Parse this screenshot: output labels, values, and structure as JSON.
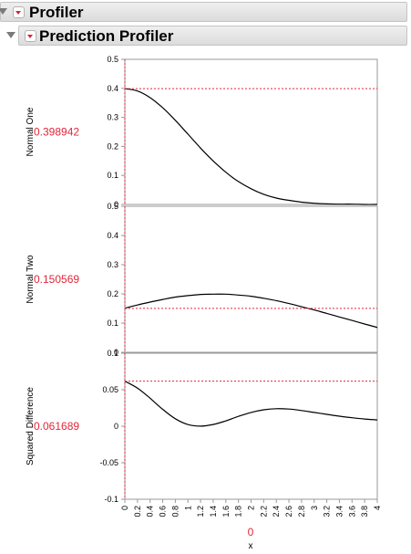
{
  "headers": {
    "profiler": {
      "title": "Profiler"
    },
    "prediction_profiler": {
      "title": "Prediction Profiler"
    }
  },
  "colors": {
    "accent": "#e3263a",
    "curve": "#000000",
    "frame": "#9a9a9a"
  },
  "x_axis": {
    "label": "x",
    "current_value": "0",
    "range": [
      0,
      4
    ],
    "ticks": [
      "0",
      "0.2",
      "0.4",
      "0.6",
      "0.8",
      "1",
      "1.2",
      "1.4",
      "1.6",
      "1.8",
      "2",
      "2.2",
      "2.4",
      "2.6",
      "2.8",
      "3",
      "3.2",
      "3.4",
      "3.6",
      "3.8",
      "4"
    ]
  },
  "chart_data": [
    {
      "type": "line",
      "ylabel": "Normal One",
      "current_value": "0.398942",
      "ylim": [
        0,
        0.5
      ],
      "yticks": [
        "0",
        "0.1",
        "0.2",
        "0.3",
        "0.4",
        "0.5"
      ],
      "series": [
        {
          "x": [
            0,
            0.2,
            0.4,
            0.6,
            0.8,
            1,
            1.2,
            1.4,
            1.6,
            1.8,
            2,
            2.2,
            2.4,
            2.6,
            2.8,
            3,
            3.2,
            3.4,
            3.6,
            3.8,
            4
          ],
          "values": [
            0.399,
            0.391,
            0.368,
            0.333,
            0.29,
            0.242,
            0.194,
            0.15,
            0.111,
            0.079,
            0.054,
            0.035,
            0.022,
            0.014,
            0.008,
            0.004,
            0.002,
            0.001,
            0.001,
            0.0,
            0.0
          ]
        }
      ]
    },
    {
      "type": "line",
      "ylabel": "Normal Two",
      "current_value": "0.150569",
      "ylim": [
        0,
        0.5
      ],
      "yticks": [
        "0",
        "0.1",
        "0.2",
        "0.3",
        "0.4",
        "0.5"
      ],
      "series": [
        {
          "x": [
            0,
            0.2,
            0.4,
            0.6,
            0.8,
            1,
            1.2,
            1.4,
            1.6,
            1.8,
            2,
            2.2,
            2.4,
            2.6,
            2.8,
            3,
            3.2,
            3.4,
            3.6,
            3.8,
            4
          ],
          "values": [
            0.151,
            0.162,
            0.172,
            0.181,
            0.189,
            0.194,
            0.198,
            0.199,
            0.199,
            0.196,
            0.192,
            0.185,
            0.177,
            0.167,
            0.156,
            0.145,
            0.133,
            0.121,
            0.109,
            0.097,
            0.085
          ]
        }
      ]
    },
    {
      "type": "line",
      "ylabel": "Squared Difference",
      "current_value": "0.061689",
      "ylim": [
        -0.1,
        0.1
      ],
      "yticks": [
        "-0.1",
        "-0.05",
        "0",
        "0.05",
        "0.1"
      ],
      "series": [
        {
          "x": [
            0,
            0.2,
            0.4,
            0.6,
            0.8,
            1,
            1.2,
            1.4,
            1.6,
            1.8,
            2,
            2.2,
            2.4,
            2.6,
            2.8,
            3,
            3.2,
            3.4,
            3.6,
            3.8,
            4
          ],
          "values": [
            0.0617,
            0.0523,
            0.0384,
            0.0231,
            0.0102,
            0.0023,
            0.0001,
            0.0024,
            0.0073,
            0.0135,
            0.0189,
            0.0225,
            0.024,
            0.0235,
            0.0215,
            0.0189,
            0.0162,
            0.0137,
            0.0116,
            0.0099,
            0.0086
          ]
        }
      ]
    }
  ]
}
